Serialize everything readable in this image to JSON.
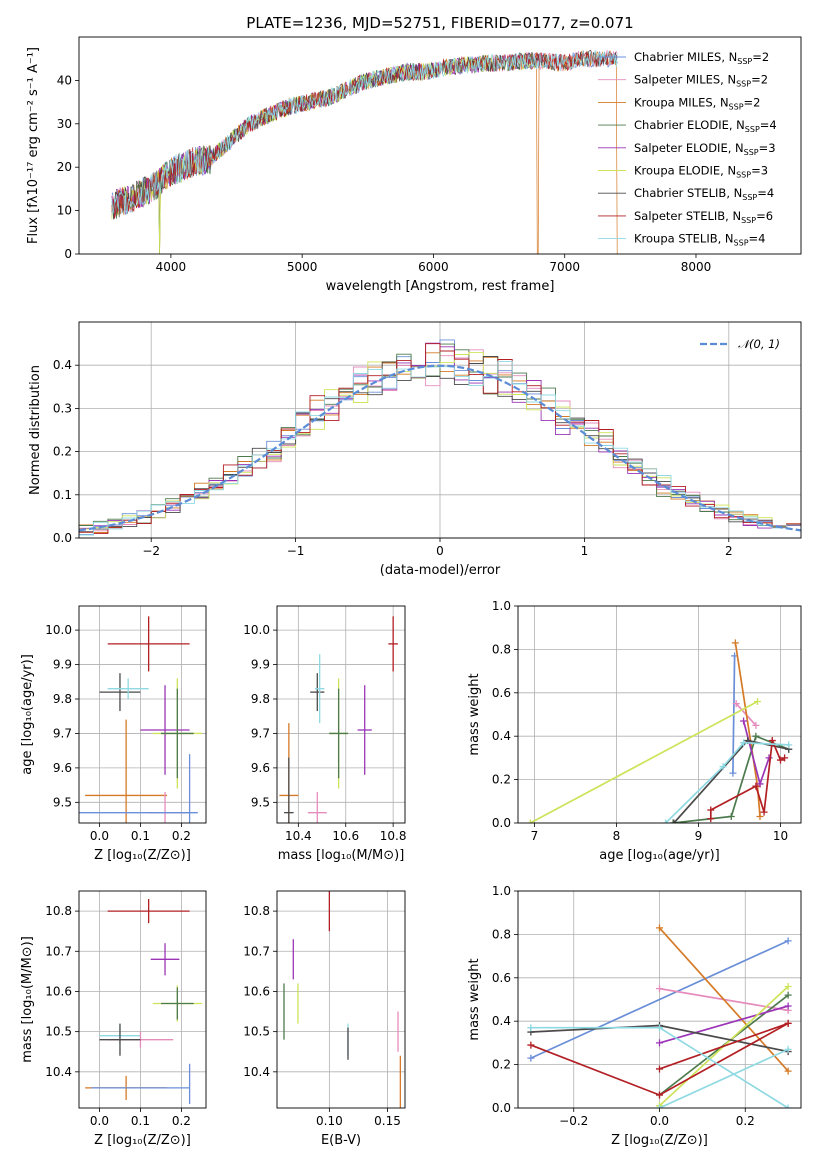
{
  "figure_title": "PLATE=1236, MJD=52751, FIBERID=0177, z=0.071",
  "chart_data": [
    {
      "id": "spectrum",
      "type": "line",
      "xlabel": "wavelength [Angstrom, rest frame]",
      "ylabel": "Flux [fλ10⁻¹⁷ erg cm⁻² s⁻¹ A⁻¹]",
      "xlim": [
        3300,
        8800
      ],
      "ylim": [
        0,
        50
      ],
      "xticks": [
        4000,
        5000,
        6000,
        7000,
        8000
      ],
      "yticks": [
        0,
        10,
        20,
        30,
        40
      ],
      "grid": false,
      "legend_position": "top-right",
      "continuum_x": [
        3550,
        3700,
        3850,
        4000,
        4150,
        4300,
        4450,
        4600,
        4750,
        4900,
        5050,
        5200,
        5350,
        5500,
        5650,
        5800,
        5950,
        6100,
        6250,
        6400,
        6550,
        6700,
        6850,
        7000,
        7150,
        7300,
        7400
      ],
      "continuum_y": [
        11,
        13,
        15,
        19,
        21,
        22,
        26,
        30,
        32,
        34,
        35,
        36,
        38,
        40,
        41,
        42,
        42,
        43,
        43.5,
        44,
        44,
        44.5,
        44.5,
        44,
        45,
        45,
        45
      ],
      "series": [
        {
          "name": "Chabrier MILES, N$_{SSP}$=2",
          "label_main": "Chabrier MILES, N",
          "label_sub": "SSP",
          "label_end": "=2",
          "color": "#6a8fd8",
          "marker": "+",
          "x_end": 7400,
          "dropouts": []
        },
        {
          "name": "Salpeter MILES, N$_{SSP}$=2",
          "label_main": "Salpeter MILES, N",
          "label_sub": "SSP",
          "label_end": "=2",
          "color": "#e68cbd",
          "x_end": 7400,
          "dropouts": []
        },
        {
          "name": "Kroupa MILES, N$_{SSP}$=2",
          "label_main": "Kroupa MILES, N",
          "label_sub": "SSP",
          "label_end": "=2",
          "color": "#d57a26",
          "x_end": 7400,
          "dropouts": [
            3915,
            6795,
            7400
          ]
        },
        {
          "name": "Chabrier ELODIE, N$_{SSP}$=4",
          "label_main": "Chabrier ELODIE, N",
          "label_sub": "SSP",
          "label_end": "=4",
          "color": "#4d7a4d",
          "x_end": 6780,
          "dropouts": [
            3915
          ]
        },
        {
          "name": "Salpeter ELODIE, N$_{SSP}$=3",
          "label_main": "Salpeter ELODIE, N",
          "label_sub": "SSP",
          "label_end": "=3",
          "color": "#9b35b6",
          "x_end": 6780,
          "dropouts": []
        },
        {
          "name": "Kroupa ELODIE, N$_{SSP}$=3",
          "label_main": "Kroupa ELODIE, N",
          "label_sub": "SSP",
          "label_end": "=3",
          "color": "#cde35a",
          "x_end": 6780,
          "dropouts": [
            3915,
            6790
          ]
        },
        {
          "name": "Chabrier STELIB, N$_{SSP}$=4",
          "label_main": "Chabrier STELIB, N",
          "label_sub": "SSP",
          "label_end": "=4",
          "color": "#4a4a4a",
          "x_end": 7400,
          "dropouts": []
        },
        {
          "name": "Salpeter STELIB, N$_{SSP}$=6",
          "label_main": "Salpeter STELIB, N",
          "label_sub": "SSP",
          "label_end": "=6",
          "color": "#b21f24",
          "x_end": 7400,
          "dropouts": []
        },
        {
          "name": "Kroupa STELIB, N$_{SSP}$=4",
          "label_main": "Kroupa STELIB, N",
          "label_sub": "SSP",
          "label_end": "=4",
          "color": "#8fd9e3",
          "x_end": 7400,
          "dropouts": []
        }
      ]
    },
    {
      "id": "residuals",
      "type": "histogram",
      "xlabel": "(data-model)/error",
      "ylabel": "Normed distribution",
      "xlim": [
        -2.5,
        2.5
      ],
      "ylim": [
        0,
        0.5
      ],
      "xticks": [
        -2,
        -1,
        0,
        1,
        2
      ],
      "yticks": [
        0.0,
        0.1,
        0.2,
        0.3,
        0.4
      ],
      "grid": true,
      "legend_position": "top-right",
      "reference_curve": {
        "name": "N(0,1)",
        "label": "𝒩(0, 1)",
        "color": "#5b8cd6",
        "style": "dashed"
      },
      "bin_width": 0.1,
      "colors": [
        "#6a8fd8",
        "#e68cbd",
        "#d57a26",
        "#4d7a4d",
        "#9b35b6",
        "#cde35a",
        "#4a4a4a",
        "#b21f24",
        "#8fd9e3"
      ]
    },
    {
      "id": "age_vs_Z",
      "type": "errorbar",
      "xlabel": "Z [log₁₀(Z/Z⊙)]",
      "ylabel": "age [log₁₀(age/yr)]",
      "xlim": [
        -0.05,
        0.26
      ],
      "ylim": [
        9.44,
        10.07
      ],
      "xticks": [
        0.0,
        0.1,
        0.2
      ],
      "yticks": [
        9.5,
        9.6,
        9.7,
        9.8,
        9.9,
        10.0
      ],
      "grid": true,
      "points": [
        {
          "x": 0.12,
          "y": 9.96,
          "xerr": 0.1,
          "yerr": 0.08,
          "color": "#b21f24"
        },
        {
          "x": 0.05,
          "y": 9.82,
          "xerr": 0.05,
          "yerr": 0.055,
          "color": "#4a4a4a"
        },
        {
          "x": 0.07,
          "y": 9.83,
          "xerr": 0.05,
          "yerr": 0.03,
          "color": "#8fd9e3"
        },
        {
          "x": 0.16,
          "y": 9.71,
          "xerr": 0.06,
          "yerr": 0.13,
          "color": "#9b35b6"
        },
        {
          "x": 0.19,
          "y": 9.7,
          "xerr": 0.06,
          "yerr": 0.16,
          "color": "#cde35a"
        },
        {
          "x": 0.19,
          "y": 9.7,
          "xerr": 0.04,
          "yerr": 0.13,
          "color": "#4d7a4d"
        },
        {
          "x": 0.065,
          "y": 9.52,
          "xerr": 0.1,
          "yerr": 0.22,
          "color": "#d57a26"
        },
        {
          "x": 0.16,
          "y": 9.47,
          "xerr": 0.04,
          "yerr": 0.06,
          "color": "#e68cbd"
        },
        {
          "x": 0.22,
          "y": 9.47,
          "xerr": 0.02,
          "yerr": 0.17,
          "color": "#6a8fd8"
        },
        {
          "x": 0.04,
          "y": 9.47,
          "xerr": 0.18,
          "yerr": 0.0,
          "color": "#6a8fd8"
        }
      ]
    },
    {
      "id": "age_vs_mass",
      "type": "errorbar",
      "xlabel": "mass [log₁₀(M/M⊙)]",
      "ylabel": "",
      "xlim": [
        10.31,
        10.85
      ],
      "ylim": [
        9.44,
        10.07
      ],
      "xticks": [
        10.4,
        10.6,
        10.8
      ],
      "yticks": [
        9.5,
        9.6,
        9.7,
        9.8,
        9.9,
        10.0
      ],
      "grid": true,
      "points": [
        {
          "x": 10.8,
          "y": 9.96,
          "xerr": 0.02,
          "yerr": 0.08,
          "color": "#b21f24"
        },
        {
          "x": 10.48,
          "y": 9.82,
          "xerr": 0.03,
          "yerr": 0.055,
          "color": "#4a4a4a"
        },
        {
          "x": 10.49,
          "y": 9.83,
          "xerr": 0.02,
          "yerr": 0.1,
          "color": "#8fd9e3"
        },
        {
          "x": 10.68,
          "y": 9.71,
          "xerr": 0.03,
          "yerr": 0.13,
          "color": "#9b35b6"
        },
        {
          "x": 10.57,
          "y": 9.7,
          "xerr": 0.04,
          "yerr": 0.16,
          "color": "#cde35a"
        },
        {
          "x": 10.57,
          "y": 9.7,
          "xerr": 0.04,
          "yerr": 0.13,
          "color": "#4d7a4d"
        },
        {
          "x": 10.36,
          "y": 9.52,
          "xerr": 0.04,
          "yerr": 0.21,
          "color": "#d57a26"
        },
        {
          "x": 10.48,
          "y": 9.47,
          "xerr": 0.04,
          "yerr": 0.06,
          "color": "#e68cbd"
        },
        {
          "x": 10.36,
          "y": 9.47,
          "xerr": 0.02,
          "yerr": 0.16,
          "color": "#4a4a4a"
        }
      ]
    },
    {
      "id": "weight_vs_age",
      "type": "line",
      "xlabel": "age [log₁₀(age/yr)]",
      "ylabel": "mass weight",
      "xlim": [
        6.8,
        10.25
      ],
      "ylim": [
        0,
        1.0
      ],
      "xticks": [
        7,
        8,
        9,
        10
      ],
      "yticks": [
        0.0,
        0.2,
        0.4,
        0.6,
        0.8,
        1.0
      ],
      "grid": true,
      "series": [
        {
          "color": "#6a8fd8",
          "x": [
            9.42,
            9.44
          ],
          "y": [
            0.23,
            0.77
          ]
        },
        {
          "color": "#e68cbd",
          "x": [
            9.46,
            9.7
          ],
          "y": [
            0.55,
            0.45
          ]
        },
        {
          "color": "#d57a26",
          "x": [
            9.45,
            9.72,
            9.75
          ],
          "y": [
            0.83,
            0.17,
            0.03
          ]
        },
        {
          "color": "#4d7a4d",
          "x": [
            8.69,
            9.4,
            9.7,
            10.1
          ],
          "y": [
            0.0,
            0.03,
            0.4,
            0.34
          ]
        },
        {
          "color": "#9b35b6",
          "x": [
            9.55,
            9.75,
            9.86
          ],
          "y": [
            0.47,
            0.18,
            0.3
          ]
        },
        {
          "color": "#cde35a",
          "x": [
            6.95,
            9.72
          ],
          "y": [
            0.0,
            0.56
          ]
        },
        {
          "color": "#4a4a4a",
          "x": [
            8.7,
            9.6,
            10.1
          ],
          "y": [
            0.0,
            0.38,
            0.34
          ]
        },
        {
          "color": "#b21f24",
          "x": [
            9.15,
            9.15,
            9.7,
            9.8,
            9.9,
            10.0,
            10.05
          ],
          "y": [
            0.02,
            0.06,
            0.17,
            0.05,
            0.38,
            0.29,
            0.3
          ]
        },
        {
          "color": "#8fd9e3",
          "x": [
            8.6,
            9.3,
            9.55,
            10.1
          ],
          "y": [
            0.0,
            0.26,
            0.37,
            0.36
          ]
        }
      ]
    },
    {
      "id": "mass_vs_Z",
      "type": "errorbar",
      "xlabel": "Z [log₁₀(Z/Z⊙)]",
      "ylabel": "mass [log₁₀(M/M⊙)]",
      "xlim": [
        -0.05,
        0.26
      ],
      "ylim": [
        10.31,
        10.85
      ],
      "xticks": [
        0.0,
        0.1,
        0.2
      ],
      "yticks": [
        10.4,
        10.5,
        10.6,
        10.7,
        10.8
      ],
      "grid": true,
      "points": [
        {
          "x": 0.12,
          "y": 10.8,
          "xerr": 0.1,
          "yerr": 0.03,
          "color": "#b21f24"
        },
        {
          "x": 0.16,
          "y": 10.68,
          "xerr": 0.035,
          "yerr": 0.04,
          "color": "#9b35b6"
        },
        {
          "x": 0.19,
          "y": 10.57,
          "xerr": 0.06,
          "yerr": 0.045,
          "color": "#cde35a"
        },
        {
          "x": 0.19,
          "y": 10.57,
          "xerr": 0.04,
          "yerr": 0.04,
          "color": "#4d7a4d"
        },
        {
          "x": 0.05,
          "y": 10.49,
          "xerr": 0.05,
          "yerr": 0.02,
          "color": "#8fd9e3"
        },
        {
          "x": 0.1,
          "y": 10.48,
          "xerr": 0.08,
          "yerr": 0.02,
          "color": "#e68cbd"
        },
        {
          "x": 0.05,
          "y": 10.48,
          "xerr": 0.05,
          "yerr": 0.04,
          "color": "#4a4a4a"
        },
        {
          "x": 0.065,
          "y": 10.36,
          "xerr": 0.1,
          "yerr": 0.03,
          "color": "#d57a26"
        },
        {
          "x": 0.1,
          "y": 10.36,
          "xerr": 0.12,
          "yerr": 0.0,
          "color": "#6a8fd8"
        },
        {
          "x": 0.22,
          "y": 10.37,
          "xerr": 0.0,
          "yerr": 0.05,
          "color": "#6a8fd8"
        }
      ]
    },
    {
      "id": "mass_vs_EBV",
      "type": "errorbar",
      "xlabel": "E(B-V)",
      "ylabel": "",
      "xlim": [
        0.055,
        0.165
      ],
      "ylim": [
        10.31,
        10.85
      ],
      "xticks": [
        0.1,
        0.15
      ],
      "yticks": [
        10.4,
        10.5,
        10.6,
        10.7,
        10.8
      ],
      "grid": true,
      "points": [
        {
          "x": 0.1,
          "y": 10.8,
          "xerr": 0.0,
          "yerr": 0.05,
          "color": "#b21f24"
        },
        {
          "x": 0.069,
          "y": 10.68,
          "xerr": 0.0,
          "yerr": 0.05,
          "color": "#9b35b6"
        },
        {
          "x": 0.073,
          "y": 10.57,
          "xerr": 0.0,
          "yerr": 0.05,
          "color": "#cde35a"
        },
        {
          "x": 0.061,
          "y": 10.55,
          "xerr": 0.0,
          "yerr": 0.07,
          "color": "#4d7a4d"
        },
        {
          "x": 0.116,
          "y": 10.48,
          "xerr": 0.0,
          "yerr": 0.04,
          "color": "#8fd9e3"
        },
        {
          "x": 0.116,
          "y": 10.47,
          "xerr": 0.0,
          "yerr": 0.04,
          "color": "#4a4a4a"
        },
        {
          "x": 0.159,
          "y": 10.5,
          "xerr": 0.0,
          "yerr": 0.05,
          "color": "#e68cbd"
        },
        {
          "x": 0.161,
          "y": 10.36,
          "xerr": 0.0,
          "yerr": 0.08,
          "color": "#d57a26"
        }
      ]
    },
    {
      "id": "weight_vs_Z",
      "type": "line",
      "xlabel": "Z [log₁₀(Z/Z⊙)]",
      "ylabel": "mass weight",
      "xlim": [
        -0.33,
        0.33
      ],
      "ylim": [
        0,
        1.0
      ],
      "xticks": [
        -0.2,
        0.0,
        0.2
      ],
      "yticks": [
        0.0,
        0.2,
        0.4,
        0.6,
        0.8,
        1.0
      ],
      "grid": true,
      "series": [
        {
          "color": "#6a8fd8",
          "x": [
            -0.3,
            0.3
          ],
          "y": [
            0.23,
            0.77
          ]
        },
        {
          "color": "#e68cbd",
          "x": [
            0.0,
            0.3
          ],
          "y": [
            0.55,
            0.45
          ]
        },
        {
          "color": "#d57a26",
          "x": [
            0.0,
            0.3
          ],
          "y": [
            0.83,
            0.17
          ]
        },
        {
          "color": "#4d7a4d",
          "x": [
            0.0,
            0.3
          ],
          "y": [
            0.06,
            0.52
          ]
        },
        {
          "color": "#9b35b6",
          "x": [
            0.0,
            0.3
          ],
          "y": [
            0.3,
            0.47
          ]
        },
        {
          "color": "#cde35a",
          "x": [
            0.0,
            0.3
          ],
          "y": [
            0.01,
            0.56
          ]
        },
        {
          "color": "#4a4a4a",
          "x": [
            -0.3,
            0.0,
            0.3
          ],
          "y": [
            0.35,
            0.38,
            0.26
          ]
        },
        {
          "color": "#b21f24",
          "x": [
            -0.3,
            0.0,
            0.3
          ],
          "y": [
            0.29,
            0.06,
            0.39
          ]
        },
        {
          "color": "#b21f24",
          "x": [
            0.0,
            0.3
          ],
          "y": [
            0.18,
            0.39
          ]
        },
        {
          "color": "#8fd9e3",
          "x": [
            -0.3,
            0.0,
            0.3
          ],
          "y": [
            0.37,
            0.37,
            0.0
          ]
        },
        {
          "color": "#8fd9e3",
          "x": [
            0.0,
            0.3
          ],
          "y": [
            0.0,
            0.27
          ]
        }
      ],
      "markers_at_edge": {
        "x": 0.3,
        "y": [
          0.0,
          0.03,
          0.06
        ]
      }
    }
  ]
}
